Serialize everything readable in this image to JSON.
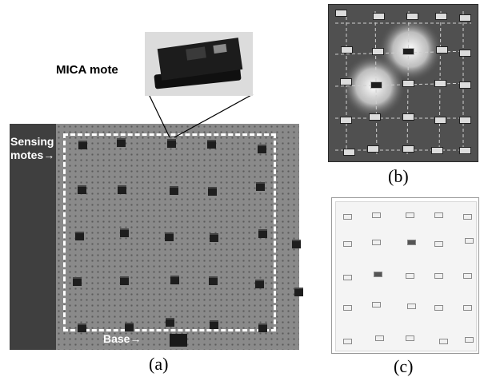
{
  "panel_a": {
    "callout_label": "MICA mote",
    "sensing_label_line1": "Sensing",
    "sensing_label_line2": "motes",
    "sensing_arrow": "→",
    "base_label": "Base",
    "base_arrow": "→",
    "caption": "(a)"
  },
  "panel_b": {
    "caption": "(b)"
  },
  "panel_c": {
    "caption": "(c)"
  }
}
